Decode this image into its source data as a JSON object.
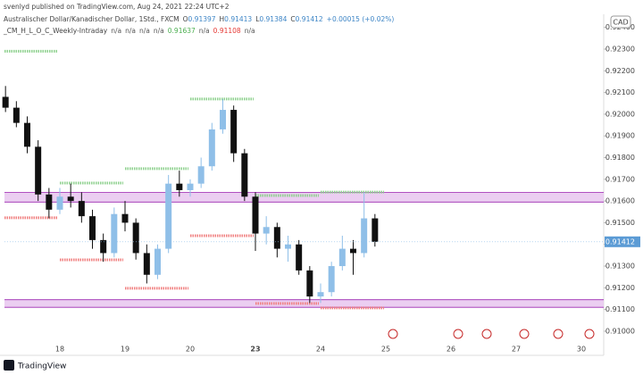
{
  "chart_data": {
    "type": "candlestick",
    "header": "svenlyd published on TradingView.com, Aug 24, 2021 22:24 UTC+2",
    "legend": {
      "symbol": "Australischer Dollar/Kanadischer Dollar, 1Std., FXCM",
      "items": [
        {
          "key": "O",
          "value": 0.91397
        },
        {
          "key": "H",
          "value": 0.91413
        },
        {
          "key": "L",
          "value": 0.91384
        },
        {
          "key": "C",
          "value": 0.91412
        }
      ],
      "change": "+0.00015 (+0.02%)",
      "value_color": "#3d85c6"
    },
    "indicator": {
      "name": "_CM_H_L_O_C_Weekly-Intraday",
      "values": [
        "n/a",
        "n/a",
        "n/a",
        "n/a",
        0.91637,
        "n/a",
        0.91108,
        "n/a"
      ],
      "colors": [
        "#555555",
        "#555555",
        "#555555",
        "#555555",
        "#4caf50",
        "#555555",
        "#e53935",
        "#555555"
      ]
    },
    "currency": "CAD",
    "footer": "TradingView",
    "up_color": "#8fbfe8",
    "down_color": "#111111",
    "candles": [
      {
        "o": 0.9208,
        "h": 0.9213,
        "l": 0.9201,
        "c": 0.9203
      },
      {
        "o": 0.9203,
        "h": 0.9206,
        "l": 0.9194,
        "c": 0.9196
      },
      {
        "o": 0.9196,
        "h": 0.9199,
        "l": 0.9182,
        "c": 0.9185
      },
      {
        "o": 0.9185,
        "h": 0.9188,
        "l": 0.916,
        "c": 0.9163
      },
      {
        "o": 0.9163,
        "h": 0.9166,
        "l": 0.9152,
        "c": 0.9156
      },
      {
        "o": 0.9156,
        "h": 0.9166,
        "l": 0.9154,
        "c": 0.9162
      },
      {
        "o": 0.9162,
        "h": 0.9168,
        "l": 0.9157,
        "c": 0.916
      },
      {
        "o": 0.916,
        "h": 0.9164,
        "l": 0.915,
        "c": 0.9153
      },
      {
        "o": 0.9153,
        "h": 0.9156,
        "l": 0.9138,
        "c": 0.9142
      },
      {
        "o": 0.9142,
        "h": 0.9145,
        "l": 0.9132,
        "c": 0.9136
      },
      {
        "o": 0.9136,
        "h": 0.9157,
        "l": 0.9134,
        "c": 0.9154
      },
      {
        "o": 0.9154,
        "h": 0.916,
        "l": 0.9146,
        "c": 0.915
      },
      {
        "o": 0.915,
        "h": 0.9152,
        "l": 0.9133,
        "c": 0.9136
      },
      {
        "o": 0.9136,
        "h": 0.914,
        "l": 0.9122,
        "c": 0.9126
      },
      {
        "o": 0.9126,
        "h": 0.914,
        "l": 0.9124,
        "c": 0.9138
      },
      {
        "o": 0.9138,
        "h": 0.9172,
        "l": 0.9136,
        "c": 0.9168
      },
      {
        "o": 0.9168,
        "h": 0.9174,
        "l": 0.9162,
        "c": 0.9165
      },
      {
        "o": 0.9165,
        "h": 0.917,
        "l": 0.9162,
        "c": 0.9168
      },
      {
        "o": 0.9168,
        "h": 0.918,
        "l": 0.9166,
        "c": 0.9176
      },
      {
        "o": 0.9176,
        "h": 0.9196,
        "l": 0.9174,
        "c": 0.9193
      },
      {
        "o": 0.9193,
        "h": 0.9207,
        "l": 0.9191,
        "c": 0.9202
      },
      {
        "o": 0.9202,
        "h": 0.9204,
        "l": 0.9178,
        "c": 0.9182
      },
      {
        "o": 0.9182,
        "h": 0.9184,
        "l": 0.916,
        "c": 0.9162
      },
      {
        "o": 0.9162,
        "h": 0.9164,
        "l": 0.9137,
        "c": 0.9145
      },
      {
        "o": 0.9145,
        "h": 0.9153,
        "l": 0.914,
        "c": 0.9148
      },
      {
        "o": 0.9148,
        "h": 0.915,
        "l": 0.9134,
        "c": 0.9138
      },
      {
        "o": 0.9138,
        "h": 0.9144,
        "l": 0.9132,
        "c": 0.914
      },
      {
        "o": 0.914,
        "h": 0.9142,
        "l": 0.9126,
        "c": 0.9128
      },
      {
        "o": 0.9128,
        "h": 0.913,
        "l": 0.9113,
        "c": 0.9116
      },
      {
        "o": 0.9116,
        "h": 0.9122,
        "l": 0.9113,
        "c": 0.9118
      },
      {
        "o": 0.9118,
        "h": 0.9132,
        "l": 0.9116,
        "c": 0.913
      },
      {
        "o": 0.913,
        "h": 0.9144,
        "l": 0.9128,
        "c": 0.9138
      },
      {
        "o": 0.9138,
        "h": 0.9142,
        "l": 0.9126,
        "c": 0.9136
      },
      {
        "o": 0.9136,
        "h": 0.9164,
        "l": 0.9134,
        "c": 0.9152
      },
      {
        "o": 0.9152,
        "h": 0.9154,
        "l": 0.9139,
        "c": 0.91412
      }
    ],
    "days": [
      "18",
      "19",
      "20",
      "23",
      "24",
      "25",
      "26",
      "27",
      "30"
    ],
    "emphasized_day": 3,
    "levels": {
      "high": [
        0.9229,
        0.91683,
        0.91749,
        0.9207,
        0.91625,
        0.91641
      ],
      "low": [
        0.91523,
        0.91329,
        0.91198,
        0.9144,
        0.91128,
        0.91107
      ],
      "high_color": "#8fd18f",
      "low_color": "#f08080"
    },
    "zones": [
      {
        "from": 0.91595,
        "to": 0.9164
      },
      {
        "from": 0.9111,
        "to": 0.91145
      }
    ],
    "zone_color": "#e7c6ef",
    "zone_edge": "#9c27b0",
    "ylim": [
      0.90901,
      0.92444
    ],
    "yticks": [
      {
        "value": 0.91,
        "label": "0.91000"
      },
      {
        "value": 0.911,
        "label": "0.91100"
      },
      {
        "value": 0.912,
        "label": "0.91200"
      },
      {
        "value": 0.913,
        "label": "0.91300"
      },
      {
        "value": 0.914,
        "label": "0.91400"
      },
      {
        "value": 0.915,
        "label": "0.91500"
      },
      {
        "value": 0.916,
        "label": "0.91600"
      },
      {
        "value": 0.917,
        "label": "0.91700"
      },
      {
        "value": 0.918,
        "label": "0.91800"
      },
      {
        "value": 0.919,
        "label": "0.91900"
      },
      {
        "value": 0.92,
        "label": "0.92000"
      },
      {
        "value": 0.921,
        "label": "0.92100"
      },
      {
        "value": 0.922,
        "label": "0.92200"
      },
      {
        "value": 0.923,
        "label": "0.92300"
      },
      {
        "value": 0.924,
        "label": "0.92400"
      }
    ]
  }
}
